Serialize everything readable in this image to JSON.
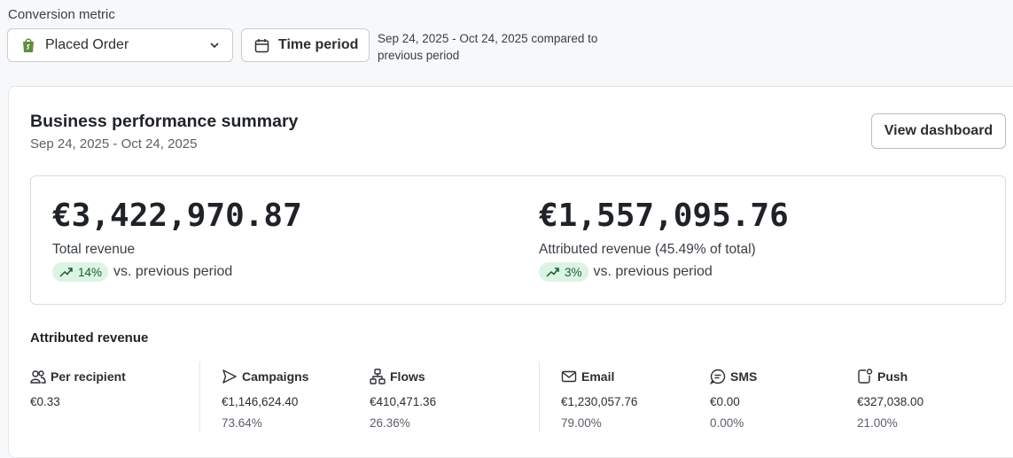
{
  "filters": {
    "conversion_label": "Conversion metric",
    "metric_value": "Placed Order",
    "time_button": "Time period",
    "compare_text": "Sep 24, 2025 - Oct 24, 2025 compared to previous period"
  },
  "summary": {
    "title": "Business performance summary",
    "date_range": "Sep 24, 2025 - Oct 24, 2025",
    "view_button": "View dashboard",
    "total": {
      "value": "€3,422,970.87",
      "label": "Total revenue",
      "change": "14%",
      "change_suffix": "vs. previous period"
    },
    "attributed": {
      "value": "€1,557,095.76",
      "label": "Attributed revenue (45.49% of total)",
      "change": "3%",
      "change_suffix": "vs. previous period"
    }
  },
  "attributed_revenue": {
    "title": "Attributed revenue",
    "columns": [
      {
        "icon": "users-icon",
        "label": "Per recipient",
        "value": "€0.33",
        "pct": ""
      },
      {
        "icon": "send-icon",
        "label": "Campaigns",
        "value": "€1,146,624.40",
        "pct": "73.64%"
      },
      {
        "icon": "flow-icon",
        "label": "Flows",
        "value": "€410,471.36",
        "pct": "26.36%"
      },
      {
        "icon": "mail-icon",
        "label": "Email",
        "value": "€1,230,057.76",
        "pct": "79.00%"
      },
      {
        "icon": "sms-icon",
        "label": "SMS",
        "value": "€0.00",
        "pct": "0.00%"
      },
      {
        "icon": "push-icon",
        "label": "Push",
        "value": "€327,038.00",
        "pct": "21.00%"
      }
    ]
  },
  "colors": {
    "accent_green_bg": "#dbf5e2",
    "accent_green_text": "#1f5a34",
    "shopify_green": "#5e8e3e"
  }
}
